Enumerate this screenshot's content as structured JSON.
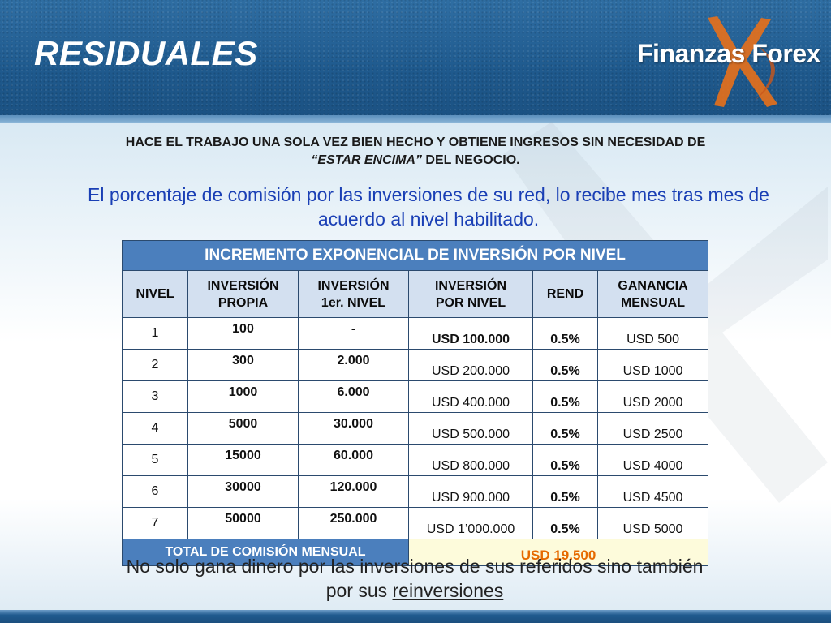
{
  "slide": {
    "title": "RESIDUALES",
    "logo_text": "Finanzas Forex",
    "headline_part1": "HACE EL TRABAJO UNA SOLA VEZ BIEN HECHO Y OBTIENE INGRESOS  SIN NECESIDAD DE",
    "headline_em": "“ESTAR ENCIMA”",
    "headline_part2": " DEL NEGOCIO.",
    "subline": "El porcentaje de comisión por las inversiones  de su red, lo recibe mes tras mes de acuerdo al nivel habilitado.",
    "footer_part1": "No solo gana dinero por las inversiones de sus referidos sino también por sus ",
    "footer_link": "reinversiones"
  },
  "table": {
    "caption": "INCREMENTO EXPONENCIAL DE INVERSIÓN POR NIVEL",
    "headers": [
      {
        "line1": "NIVEL",
        "line2": ""
      },
      {
        "line1": "INVERSIÓN",
        "line2": "PROPIA"
      },
      {
        "line1": "INVERSIÓN",
        "line2": "1er. NIVEL"
      },
      {
        "line1": "INVERSIÓN",
        "line2": "POR NIVEL"
      },
      {
        "line1": "REND",
        "line2": ""
      },
      {
        "line1": "GANANCIA",
        "line2": "MENSUAL"
      }
    ],
    "rows": [
      {
        "nivel": "1",
        "propia": "100",
        "primer": "-",
        "por_nivel": "USD 100.000",
        "rend": "0.5%",
        "ganancia": "USD 500"
      },
      {
        "nivel": "2",
        "propia": "300",
        "primer": "2.000",
        "por_nivel": "USD 200.000",
        "rend": "0.5%",
        "ganancia": "USD 1000"
      },
      {
        "nivel": "3",
        "propia": "1000",
        "primer": "6.000",
        "por_nivel": "USD 400.000",
        "rend": "0.5%",
        "ganancia": "USD 2000"
      },
      {
        "nivel": "4",
        "propia": "5000",
        "primer": "30.000",
        "por_nivel": "USD 500.000",
        "rend": "0.5%",
        "ganancia": "USD 2500"
      },
      {
        "nivel": "5",
        "propia": "15000",
        "primer": "60.000",
        "por_nivel": "USD 800.000",
        "rend": "0.5%",
        "ganancia": "USD 4000"
      },
      {
        "nivel": "6",
        "propia": "30000",
        "primer": "120.000",
        "por_nivel": "USD 900.000",
        "rend": "0.5%",
        "ganancia": "USD 4500"
      },
      {
        "nivel": "7",
        "propia": "50000",
        "primer": "250.000",
        "por_nivel": "USD 1’000.000",
        "rend": "0.5%",
        "ganancia": "USD 5000"
      }
    ],
    "total_label": "TOTAL  DE COMISIÓN MENSUAL",
    "total_value": "USD 19.500"
  },
  "colors": {
    "header_blue": "#1f5a8e",
    "table_accent": "#4b7fbd",
    "subline_blue": "#1a3fb5",
    "total_orange": "#e66a00"
  }
}
